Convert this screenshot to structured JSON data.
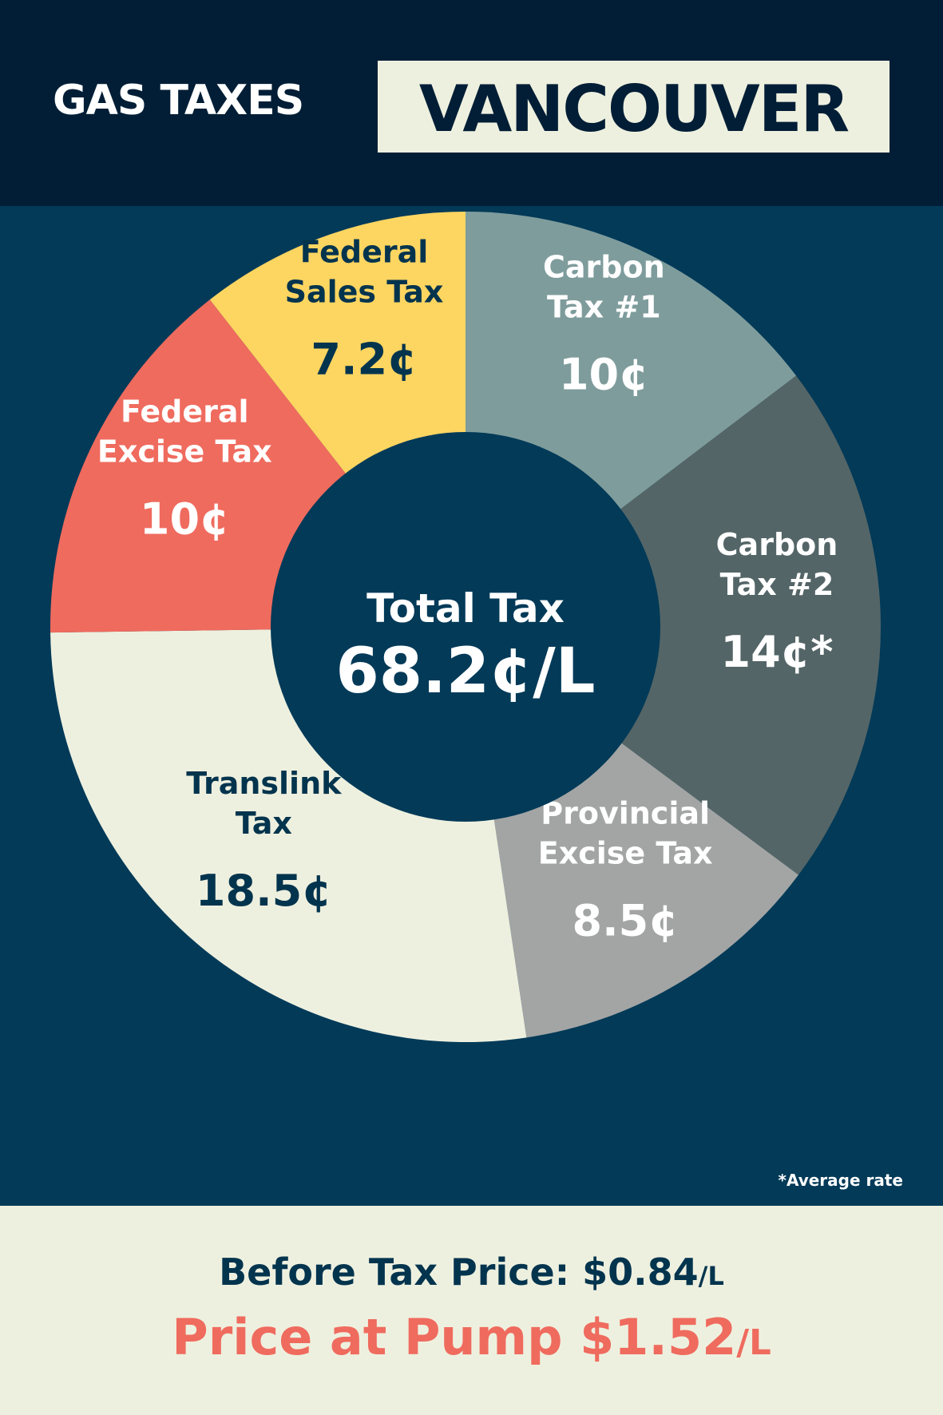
{
  "header": {
    "title_left": "GAS TAXES",
    "title_right": "VANCOUVER"
  },
  "footnote": "*Average rate",
  "footer": {
    "before_tax_label": "Before Tax Price: $0.84",
    "before_tax_unit": "/L",
    "pump_label": "Price at Pump $1.52",
    "pump_unit": "/L"
  },
  "colors": {
    "header_bg": "#011e36",
    "main_bg": "#023a58",
    "center_bg": "#023a58",
    "footer_bg": "#eef0df",
    "accent_red": "#ef6b5e"
  },
  "chart_data": {
    "type": "pie",
    "title": "GAS TAXES VANCOUVER",
    "center_label": "Total Tax",
    "center_value": "68.2¢/L",
    "total": 68.2,
    "unit": "¢/L",
    "slices": [
      {
        "label": [
          "Carbon",
          "Tax #1"
        ],
        "value": 10,
        "value_label": "10¢",
        "color": "#7f9c9c",
        "text_color": "#ffffff"
      },
      {
        "label": [
          "Carbon",
          "Tax #2"
        ],
        "value": 14,
        "value_label": "14¢*",
        "color": "#546567",
        "text_color": "#ffffff"
      },
      {
        "label": [
          "Provincial",
          "Excise Tax"
        ],
        "value": 8.5,
        "value_label": "8.5¢",
        "color": "#a3a5a4",
        "text_color": "#ffffff"
      },
      {
        "label": [
          "Translink",
          "Tax"
        ],
        "value": 18.5,
        "value_label": "18.5¢",
        "color": "#eef0df",
        "text_color": "#03344e"
      },
      {
        "label": [
          "Federal",
          "Excise Tax"
        ],
        "value": 10,
        "value_label": "10¢",
        "color": "#ef6b5e",
        "text_color": "#ffffff"
      },
      {
        "label": [
          "Federal",
          "Sales Tax"
        ],
        "value": 7.2,
        "value_label": "7.2¢",
        "color": "#fdd561",
        "text_color": "#03344e"
      }
    ]
  }
}
